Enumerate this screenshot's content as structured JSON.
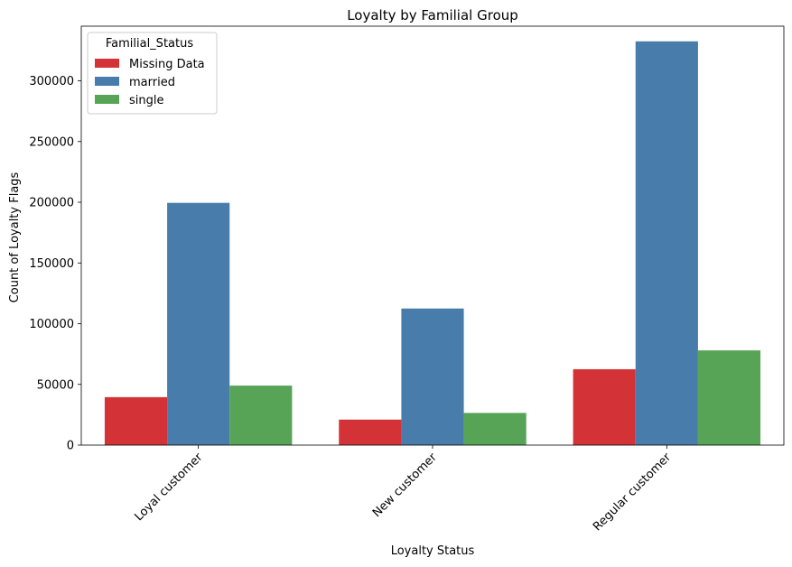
{
  "chart_data": {
    "type": "bar",
    "title": "Loyalty by Familial Group",
    "xlabel": "Loyalty Status",
    "ylabel": "Count of Loyalty Flags",
    "categories": [
      "Loyal customer",
      "New customer",
      "Regular customer"
    ],
    "series": [
      {
        "name": "Missing Data",
        "color": "#d33237",
        "values": [
          39500,
          21000,
          62500
        ]
      },
      {
        "name": "married",
        "color": "#477cab",
        "values": [
          199500,
          112500,
          332500
        ]
      },
      {
        "name": "single",
        "color": "#57a457",
        "values": [
          49000,
          26500,
          78000
        ]
      }
    ],
    "yticks": [
      0,
      50000,
      100000,
      150000,
      200000,
      250000,
      300000
    ],
    "ylim": [
      0,
      345000
    ],
    "legend": {
      "title": "Familial_Status",
      "position": "upper-left"
    },
    "grid": false
  }
}
